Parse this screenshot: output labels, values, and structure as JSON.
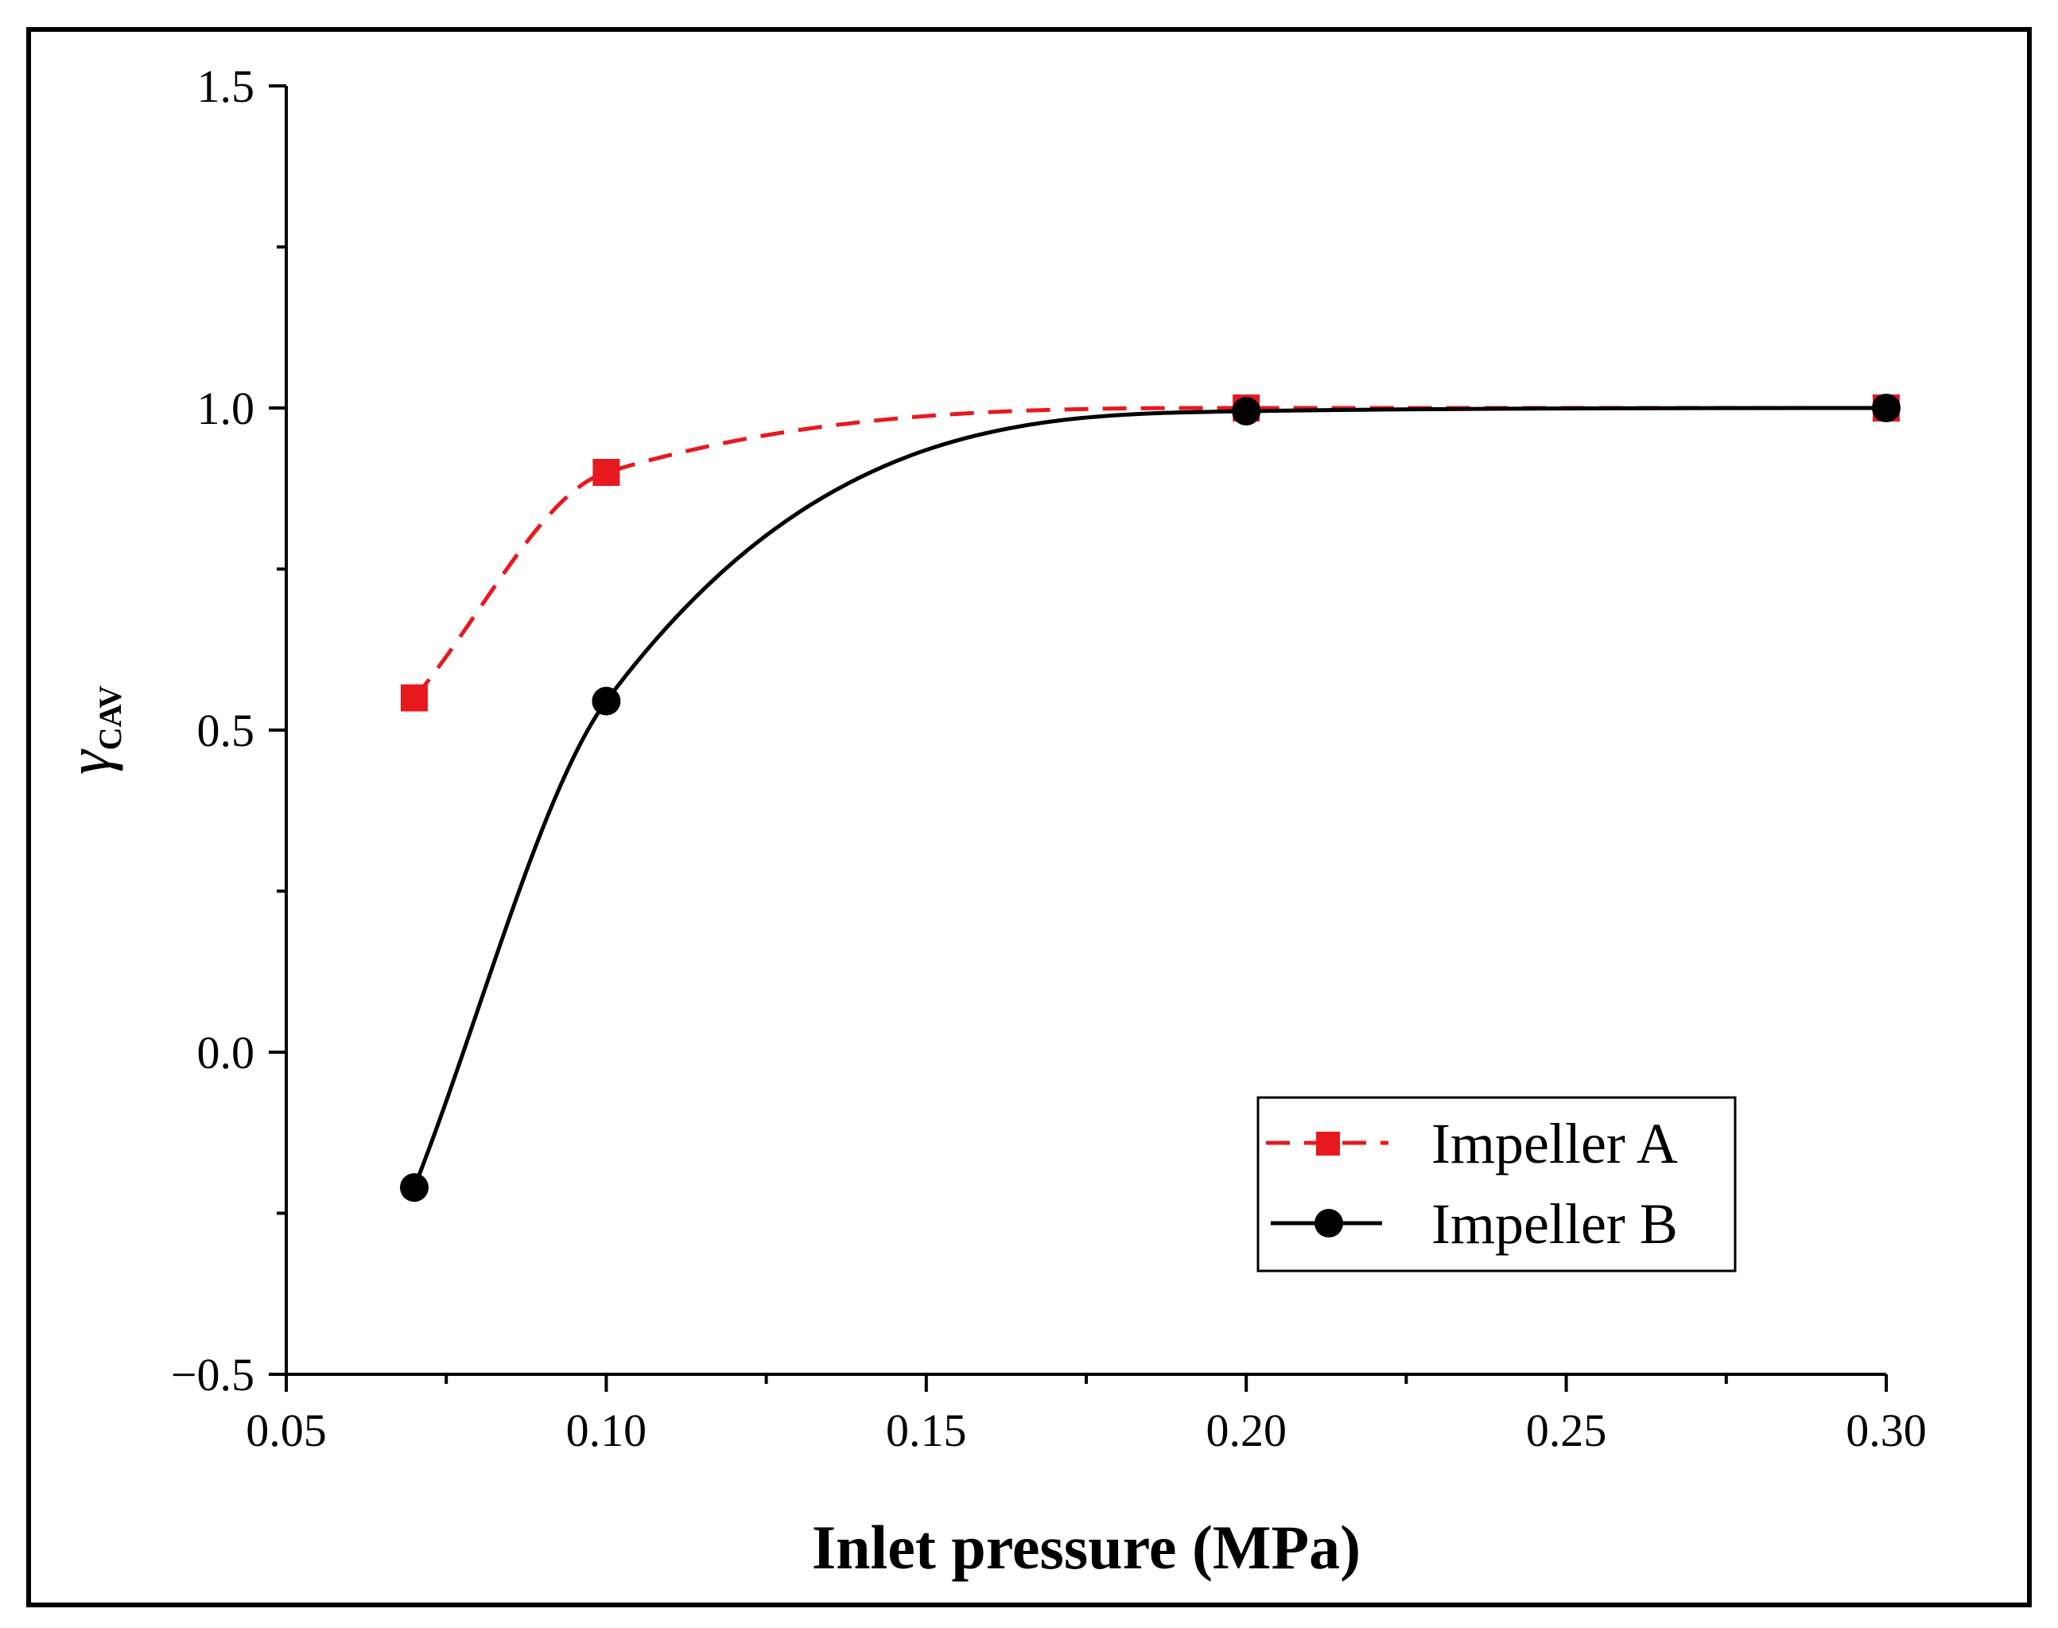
{
  "chart_data": {
    "type": "line",
    "title": "",
    "xlabel": "Inlet pressure (MPa)",
    "ylabel": {
      "main": "γ",
      "sub": "CAV"
    },
    "xlim": [
      0.05,
      0.3
    ],
    "ylim": [
      -0.5,
      1.5
    ],
    "xticks": [
      0.05,
      0.1,
      0.15,
      0.2,
      0.25,
      0.3
    ],
    "xtick_labels": [
      "0.05",
      "0.10",
      "0.15",
      "0.20",
      "0.25",
      "0.30"
    ],
    "yticks": [
      -0.5,
      0.0,
      0.5,
      1.0,
      1.5
    ],
    "ytick_labels": [
      "−0.5",
      "0.0",
      "0.5",
      "1.0",
      "1.5"
    ],
    "grid": false,
    "legend_position": "bottom-right",
    "series": [
      {
        "name": "Impeller A",
        "color": "#e8191e",
        "line_style": "dashed",
        "marker": "square",
        "x": [
          0.07,
          0.1,
          0.2,
          0.3
        ],
        "y": [
          0.55,
          0.9,
          1.0,
          1.0
        ]
      },
      {
        "name": "Impeller B",
        "color": "#000000",
        "line_style": "solid",
        "marker": "circle",
        "x": [
          0.07,
          0.1,
          0.2,
          0.3
        ],
        "y": [
          -0.21,
          0.545,
          0.995,
          1.0
        ]
      }
    ]
  }
}
